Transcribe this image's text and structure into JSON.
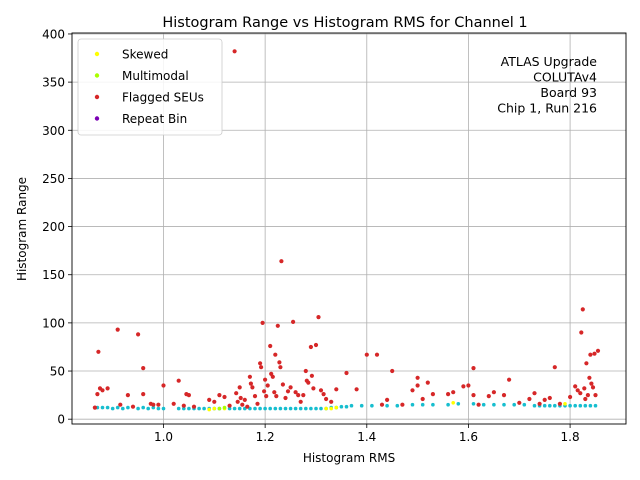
{
  "chart_data": {
    "type": "scatter",
    "title": "Histogram Range vs Histogram RMS for Channel 1",
    "xlabel": "Histogram RMS",
    "ylabel": "Histogram Range",
    "xlim": [
      0.82,
      1.91
    ],
    "ylim": [
      -5,
      401
    ],
    "x_ticks": [
      1.0,
      1.2,
      1.4,
      1.6,
      1.8
    ],
    "x_tick_labels": [
      "1.0",
      "1.2",
      "1.4",
      "1.6",
      "1.8"
    ],
    "y_ticks": [
      0,
      50,
      100,
      150,
      200,
      250,
      300,
      350,
      400
    ],
    "y_tick_labels": [
      "0",
      "50",
      "100",
      "150",
      "200",
      "250",
      "300",
      "350",
      "400"
    ],
    "grid": true,
    "legend_position": "top-left",
    "annotation": [
      "ATLAS Upgrade",
      "COLUTAv4",
      "Board 93",
      "Chip 1, Run 216"
    ],
    "series": [
      {
        "name": "",
        "color": "#17becf",
        "points": [
          [
            0.87,
            12
          ],
          [
            0.88,
            12
          ],
          [
            0.89,
            12
          ],
          [
            0.9,
            11
          ],
          [
            0.91,
            12
          ],
          [
            0.92,
            11
          ],
          [
            0.93,
            12
          ],
          [
            0.95,
            11
          ],
          [
            0.96,
            12
          ],
          [
            0.97,
            11
          ],
          [
            0.98,
            12
          ],
          [
            0.99,
            11
          ],
          [
            1.0,
            11
          ],
          [
            1.03,
            11
          ],
          [
            1.04,
            11
          ],
          [
            1.05,
            11
          ],
          [
            1.06,
            11
          ],
          [
            1.07,
            11
          ],
          [
            1.08,
            11
          ],
          [
            1.09,
            11
          ],
          [
            1.1,
            11
          ],
          [
            1.11,
            11
          ],
          [
            1.13,
            11
          ],
          [
            1.14,
            11
          ],
          [
            1.15,
            11
          ],
          [
            1.16,
            11
          ],
          [
            1.17,
            11
          ],
          [
            1.18,
            11
          ],
          [
            1.19,
            11
          ],
          [
            1.2,
            11
          ],
          [
            1.21,
            11
          ],
          [
            1.22,
            11
          ],
          [
            1.23,
            11
          ],
          [
            1.24,
            11
          ],
          [
            1.25,
            11
          ],
          [
            1.26,
            11
          ],
          [
            1.27,
            11
          ],
          [
            1.28,
            11
          ],
          [
            1.29,
            11
          ],
          [
            1.3,
            11
          ],
          [
            1.31,
            11
          ],
          [
            1.32,
            11
          ],
          [
            1.33,
            12
          ],
          [
            1.34,
            12
          ],
          [
            1.35,
            13
          ],
          [
            1.36,
            13
          ],
          [
            1.37,
            14
          ],
          [
            1.39,
            14
          ],
          [
            1.41,
            14
          ],
          [
            1.44,
            14
          ],
          [
            1.46,
            14
          ],
          [
            1.49,
            15
          ],
          [
            1.51,
            15
          ],
          [
            1.53,
            15
          ],
          [
            1.56,
            15
          ],
          [
            1.58,
            16
          ],
          [
            1.61,
            16
          ],
          [
            1.63,
            15
          ],
          [
            1.65,
            15
          ],
          [
            1.67,
            15
          ],
          [
            1.69,
            15
          ],
          [
            1.71,
            15
          ],
          [
            1.73,
            14
          ],
          [
            1.74,
            14
          ],
          [
            1.75,
            14
          ],
          [
            1.76,
            14
          ],
          [
            1.77,
            14
          ],
          [
            1.78,
            14
          ],
          [
            1.79,
            14
          ],
          [
            1.8,
            14
          ],
          [
            1.81,
            14
          ],
          [
            1.82,
            14
          ],
          [
            1.83,
            14
          ],
          [
            1.84,
            14
          ],
          [
            1.85,
            14
          ]
        ]
      },
      {
        "name": "Skewed",
        "color": "#ffff00",
        "points": [
          [
            1.09,
            10
          ],
          [
            1.1,
            11
          ],
          [
            1.12,
            11
          ],
          [
            1.32,
            11
          ],
          [
            1.33,
            11
          ],
          [
            1.34,
            12
          ],
          [
            1.57,
            17
          ],
          [
            1.79,
            16
          ]
        ]
      },
      {
        "name": "Multimodal",
        "color": "#aaff00",
        "points": [
          [
            1.11,
            11
          ],
          [
            1.12,
            12
          ]
        ]
      },
      {
        "name": "Flagged SEUs",
        "color": "#d62728",
        "points": [
          [
            0.865,
            12
          ],
          [
            0.87,
            26
          ],
          [
            0.872,
            70
          ],
          [
            0.875,
            32
          ],
          [
            0.88,
            30
          ],
          [
            0.89,
            32
          ],
          [
            0.91,
            93
          ],
          [
            0.915,
            15
          ],
          [
            0.93,
            25
          ],
          [
            0.94,
            13
          ],
          [
            0.95,
            88
          ],
          [
            0.96,
            26
          ],
          [
            0.96,
            53
          ],
          [
            0.975,
            16
          ],
          [
            0.98,
            15
          ],
          [
            0.99,
            15
          ],
          [
            1.0,
            35
          ],
          [
            1.02,
            16
          ],
          [
            1.03,
            40
          ],
          [
            1.04,
            14
          ],
          [
            1.045,
            26
          ],
          [
            1.05,
            25
          ],
          [
            1.06,
            13
          ],
          [
            1.09,
            20
          ],
          [
            1.1,
            18
          ],
          [
            1.11,
            25
          ],
          [
            1.12,
            23
          ],
          [
            1.13,
            14
          ],
          [
            1.14,
            382
          ],
          [
            1.143,
            27
          ],
          [
            1.146,
            18
          ],
          [
            1.15,
            33
          ],
          [
            1.152,
            22
          ],
          [
            1.155,
            15
          ],
          [
            1.16,
            20
          ],
          [
            1.165,
            13
          ],
          [
            1.17,
            44
          ],
          [
            1.172,
            37
          ],
          [
            1.175,
            33
          ],
          [
            1.18,
            24
          ],
          [
            1.185,
            16
          ],
          [
            1.19,
            58
          ],
          [
            1.192,
            54
          ],
          [
            1.195,
            100
          ],
          [
            1.198,
            29
          ],
          [
            1.2,
            41
          ],
          [
            1.202,
            24
          ],
          [
            1.205,
            35
          ],
          [
            1.21,
            76
          ],
          [
            1.212,
            47
          ],
          [
            1.215,
            44
          ],
          [
            1.218,
            28
          ],
          [
            1.22,
            67
          ],
          [
            1.222,
            24
          ],
          [
            1.225,
            97
          ],
          [
            1.228,
            59
          ],
          [
            1.23,
            54
          ],
          [
            1.232,
            164
          ],
          [
            1.235,
            36
          ],
          [
            1.24,
            22
          ],
          [
            1.245,
            29
          ],
          [
            1.25,
            33
          ],
          [
            1.255,
            101
          ],
          [
            1.26,
            28
          ],
          [
            1.265,
            25
          ],
          [
            1.27,
            18
          ],
          [
            1.275,
            25
          ],
          [
            1.28,
            50
          ],
          [
            1.282,
            40
          ],
          [
            1.285,
            38
          ],
          [
            1.29,
            75
          ],
          [
            1.292,
            45
          ],
          [
            1.295,
            32
          ],
          [
            1.3,
            77
          ],
          [
            1.305,
            106
          ],
          [
            1.31,
            30
          ],
          [
            1.315,
            26
          ],
          [
            1.32,
            21
          ],
          [
            1.33,
            18
          ],
          [
            1.34,
            31
          ],
          [
            1.36,
            48
          ],
          [
            1.38,
            31
          ],
          [
            1.4,
            67
          ],
          [
            1.42,
            67
          ],
          [
            1.43,
            15
          ],
          [
            1.44,
            20
          ],
          [
            1.45,
            50
          ],
          [
            1.47,
            15
          ],
          [
            1.49,
            30
          ],
          [
            1.5,
            43
          ],
          [
            1.5,
            35
          ],
          [
            1.51,
            21
          ],
          [
            1.52,
            38
          ],
          [
            1.53,
            26
          ],
          [
            1.56,
            26
          ],
          [
            1.57,
            28
          ],
          [
            1.59,
            34
          ],
          [
            1.6,
            35
          ],
          [
            1.61,
            53
          ],
          [
            1.61,
            25
          ],
          [
            1.62,
            15
          ],
          [
            1.64,
            24
          ],
          [
            1.65,
            28
          ],
          [
            1.67,
            25
          ],
          [
            1.68,
            41
          ],
          [
            1.7,
            17
          ],
          [
            1.72,
            21
          ],
          [
            1.73,
            27
          ],
          [
            1.74,
            16
          ],
          [
            1.75,
            20
          ],
          [
            1.76,
            22
          ],
          [
            1.77,
            54
          ],
          [
            1.78,
            16
          ],
          [
            1.8,
            23
          ],
          [
            1.81,
            34
          ],
          [
            1.815,
            30
          ],
          [
            1.82,
            27
          ],
          [
            1.822,
            90
          ],
          [
            1.825,
            114
          ],
          [
            1.828,
            32
          ],
          [
            1.83,
            21
          ],
          [
            1.832,
            58
          ],
          [
            1.835,
            25
          ],
          [
            1.838,
            43
          ],
          [
            1.84,
            67
          ],
          [
            1.842,
            37
          ],
          [
            1.845,
            33
          ],
          [
            1.848,
            68
          ],
          [
            1.85,
            25
          ],
          [
            1.855,
            71
          ]
        ]
      },
      {
        "name": "Repeat Bin",
        "color": "#7b00b4",
        "points": []
      }
    ]
  }
}
